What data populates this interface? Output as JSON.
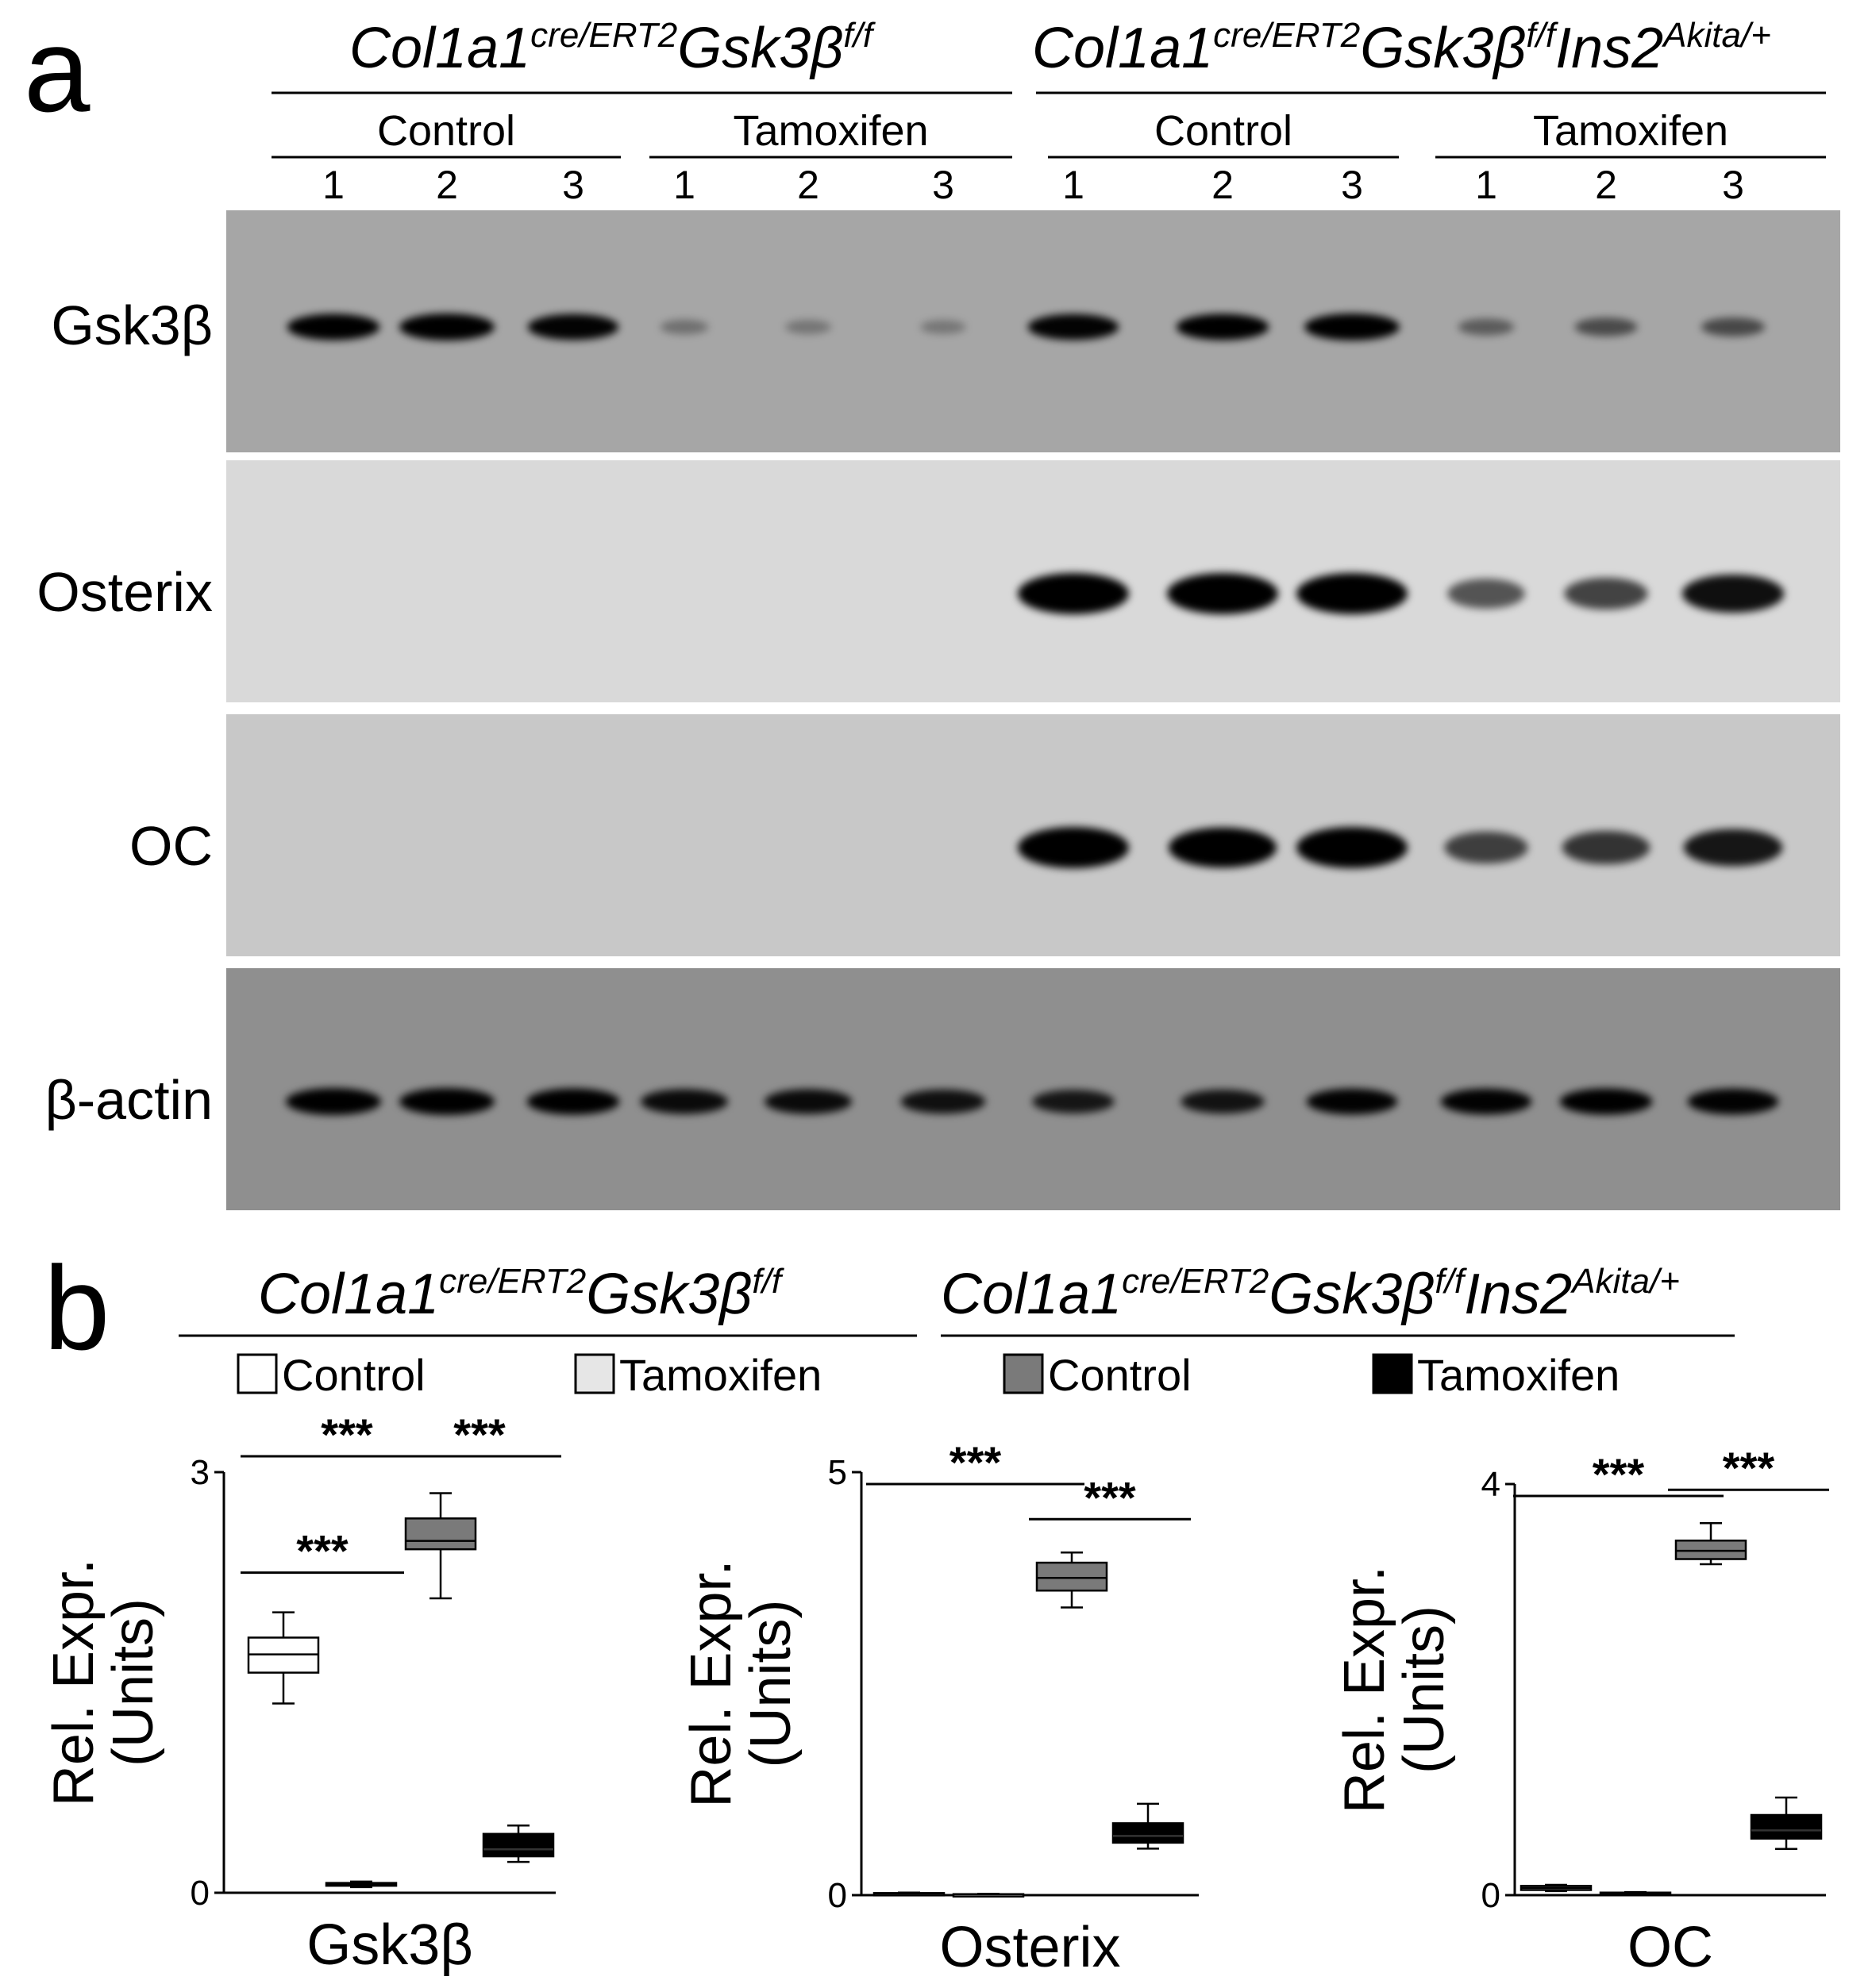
{
  "panel_a": {
    "letter": "a",
    "genotypes": [
      {
        "base": "Col1a1",
        "cre": "cre/ERT2",
        "gene": "Gsk3β",
        "gene_sup": "f/f",
        "extra": "",
        "extra_sup": ""
      },
      {
        "base": "Col1a1",
        "cre": "cre/ERT2",
        "gene": "Gsk3β",
        "gene_sup": "f/f",
        "extra": "Ins2",
        "extra_sup": "Akita/+"
      }
    ],
    "groups": [
      "Control",
      "Tamoxifen",
      "Control",
      "Tamoxifen"
    ],
    "lanes": [
      "1",
      "2",
      "3",
      "1",
      "2",
      "3",
      "1",
      "2",
      "3",
      "1",
      "2",
      "3"
    ],
    "blots": [
      {
        "protein": "Gsk3β",
        "background": "#a6a6a6",
        "intensity": [
          0.95,
          1.0,
          0.92,
          0.1,
          0.06,
          0.05,
          0.92,
          0.95,
          1.0,
          0.25,
          0.38,
          0.4
        ]
      },
      {
        "protein": "Osterix",
        "background": "#d9d9d9",
        "intensity": [
          0.0,
          0.0,
          0.0,
          0.0,
          0.0,
          0.0,
          1.0,
          1.0,
          1.0,
          0.45,
          0.55,
          0.85
        ]
      },
      {
        "protein": "OC",
        "background": "#c8c8c8",
        "intensity": [
          0.0,
          0.0,
          0.0,
          0.0,
          0.0,
          0.0,
          1.0,
          0.95,
          1.0,
          0.55,
          0.62,
          0.8
        ]
      },
      {
        "protein": "β-actin",
        "background": "#8f8f8f",
        "intensity": [
          1.0,
          1.0,
          0.95,
          0.85,
          0.85,
          0.8,
          0.75,
          0.78,
          0.92,
          0.92,
          0.95,
          0.92
        ]
      }
    ]
  },
  "panel_b": {
    "letter": "b",
    "legend": [
      {
        "label": "Control",
        "color": "#ffffff"
      },
      {
        "label": "Tamoxifen",
        "color": "#e6e6e6"
      },
      {
        "label": "Control",
        "color": "#7a7a7a"
      },
      {
        "label": "Tamoxifen",
        "color": "#000000"
      }
    ],
    "ylabel_line1": "Rel. Expr.",
    "ylabel_line2": "(Units)",
    "significance": "***"
  },
  "chart_data": [
    {
      "type": "box",
      "title": "",
      "xlabel": "Gsk3β",
      "ylabel": "Rel. Expr. (Units)",
      "ylim": [
        0,
        3
      ],
      "yticks": [
        "0",
        "3"
      ],
      "groups": [
        "Col1a1cre/ERT2Gsk3βf/f Control",
        "Col1a1cre/ERT2Gsk3βf/f Tamoxifen",
        "Col1a1cre/ERT2Gsk3βf/fIns2Akita/+ Control",
        "Col1a1cre/ERT2Gsk3βf/fIns2Akita/+ Tamoxifen"
      ],
      "boxes": [
        {
          "min": 1.35,
          "q1": 1.57,
          "median": 1.7,
          "q3": 1.82,
          "max": 2.0
        },
        {
          "min": 0.04,
          "q1": 0.05,
          "median": 0.06,
          "q3": 0.07,
          "max": 0.08
        },
        {
          "min": 2.1,
          "q1": 2.45,
          "median": 2.51,
          "q3": 2.67,
          "max": 2.85
        },
        {
          "min": 0.22,
          "q1": 0.26,
          "median": 0.31,
          "q3": 0.42,
          "max": 0.48
        }
      ],
      "significance": [
        {
          "from": 0,
          "to": 1,
          "label": "***"
        },
        {
          "from": 0,
          "to": 2,
          "label": "***"
        },
        {
          "from": 2,
          "to": 3,
          "label": "***"
        }
      ]
    },
    {
      "type": "box",
      "title": "",
      "xlabel": "Osterix",
      "ylabel": "Rel. Expr. (Units)",
      "ylim": [
        0,
        5
      ],
      "yticks": [
        "0",
        "5"
      ],
      "groups": [
        "Col1a1cre/ERT2Gsk3βf/f Control",
        "Col1a1cre/ERT2Gsk3βf/f Tamoxifen",
        "Col1a1cre/ERT2Gsk3βf/fIns2Akita/+ Control",
        "Col1a1cre/ERT2Gsk3βf/fIns2Akita/+ Tamoxifen"
      ],
      "boxes": [
        {
          "min": 0.01,
          "q1": 0.015,
          "median": 0.02,
          "q3": 0.025,
          "max": 0.03
        },
        {
          "min": 0.005,
          "q1": 0.008,
          "median": 0.01,
          "q3": 0.012,
          "max": 0.015
        },
        {
          "min": 3.4,
          "q1": 3.6,
          "median": 3.75,
          "q3": 3.93,
          "max": 4.05
        },
        {
          "min": 0.55,
          "q1": 0.62,
          "median": 0.7,
          "q3": 0.85,
          "max": 1.08
        }
      ],
      "significance": [
        {
          "from": 0,
          "to": 2,
          "label": "***"
        },
        {
          "from": 2,
          "to": 3,
          "label": "***"
        }
      ]
    },
    {
      "type": "box",
      "title": "",
      "xlabel": "OC",
      "ylabel": "Rel. Expr. (Units)",
      "ylim": [
        0,
        4
      ],
      "yticks": [
        "0",
        "4"
      ],
      "groups": [
        "Col1a1cre/ERT2Gsk3βf/f Control",
        "Col1a1cre/ERT2Gsk3βf/f Tamoxifen",
        "Col1a1cre/ERT2Gsk3βf/fIns2Akita/+ Control",
        "Col1a1cre/ERT2Gsk3βf/fIns2Akita/+ Tamoxifen"
      ],
      "boxes": [
        {
          "min": 0.04,
          "q1": 0.05,
          "median": 0.07,
          "q3": 0.09,
          "max": 0.1
        },
        {
          "min": 0.01,
          "q1": 0.015,
          "median": 0.02,
          "q3": 0.025,
          "max": 0.03
        },
        {
          "min": 3.22,
          "q1": 3.27,
          "median": 3.35,
          "q3": 3.45,
          "max": 3.62
        },
        {
          "min": 0.45,
          "q1": 0.55,
          "median": 0.63,
          "q3": 0.78,
          "max": 0.95
        }
      ],
      "significance": [
        {
          "from": 0,
          "to": 2,
          "label": "***"
        },
        {
          "from": 2,
          "to": 3,
          "label": "***"
        }
      ]
    }
  ]
}
